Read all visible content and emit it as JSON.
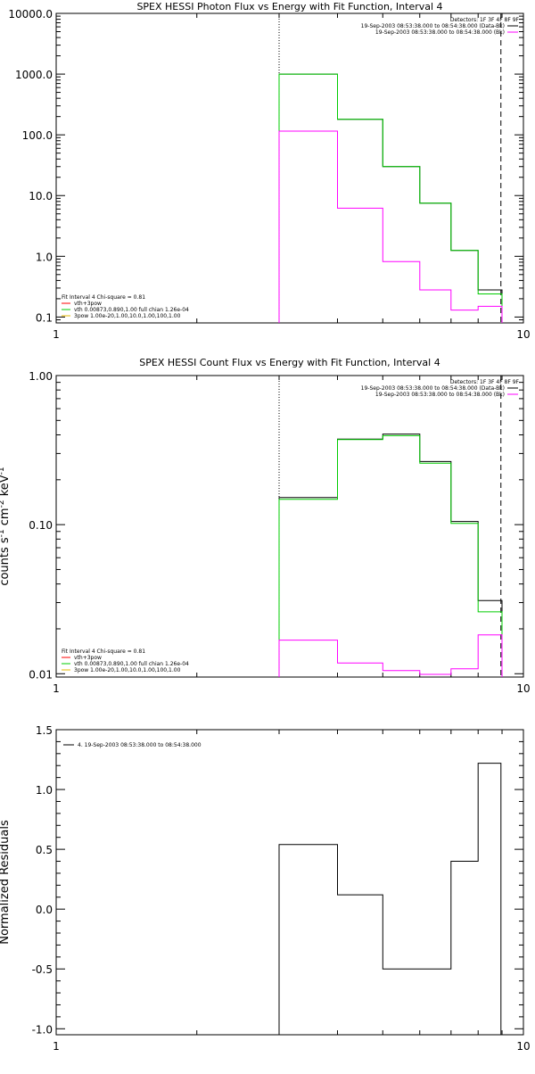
{
  "chart_data": [
    {
      "type": "line",
      "title": "SPEX HESSI Photon Flux vs Energy with Fit Function, Interval 4",
      "xscale": "log",
      "yscale": "log",
      "xlim": [
        1,
        10
      ],
      "ylim": [
        0.08,
        10000
      ],
      "xticks": [
        1,
        10
      ],
      "xtick_labels": [
        "1",
        "10"
      ],
      "yticks": [
        0.1,
        1,
        10,
        100,
        1000,
        10000
      ],
      "ytick_labels": [
        "0.1",
        "1.0",
        "10.0",
        "100.0",
        "1000.0",
        "10000.0"
      ],
      "xlabel": "",
      "ylabel": "",
      "vlines": [
        {
          "x": 3.0,
          "style": "dotted"
        },
        {
          "x": 8.95,
          "style": "dashed"
        }
      ],
      "legend_top_right": [
        {
          "label": "Detectors: 1F 3F 4F 8F 9F",
          "color": ""
        },
        {
          "label": "19-Sep-2003 08:53:38.000 to 08:54:38.000 (Data-Bk)",
          "color": "#000000"
        },
        {
          "label": "19-Sep-2003 08:53:38.000 to 08:54:38.000 (Bk)",
          "color": "#ff00ff"
        }
      ],
      "legend_bottom_left": [
        {
          "label": "Fit Interval 4   Chi-square = 0.81",
          "color": "#000000"
        },
        {
          "label": "vth+3pow",
          "color": "#ff0000"
        },
        {
          "label": "vth 0.00873,0.890,1.00  full chian 1.26e-04",
          "color": "#00cc00"
        },
        {
          "label": "3pow 1.00e-20,1.00,10.0,1.00,100,1.00",
          "color": "#e6b800"
        }
      ],
      "series": [
        {
          "name": "19-Sep-2003 08:53:38.000 to 08:54:38.000 (Data-Bk)",
          "color": "#000000",
          "edges": [
            3,
            4,
            5,
            6,
            7,
            8,
            9
          ],
          "values": [
            1000,
            180,
            30,
            7.5,
            1.25,
            0.28
          ]
        },
        {
          "name": "vth",
          "color": "#00cc00",
          "edges": [
            3,
            4,
            5,
            6,
            7,
            8,
            9
          ],
          "values": [
            1000,
            180,
            30,
            7.5,
            1.25,
            0.24
          ]
        },
        {
          "name": "19-Sep-2003 08:53:38.000 to 08:54:38.000 (Bk)",
          "color": "#ff00ff",
          "edges": [
            3,
            4,
            5,
            6,
            7,
            8,
            9
          ],
          "values": [
            115,
            6.2,
            0.82,
            0.28,
            0.13,
            0.15
          ]
        }
      ]
    },
    {
      "type": "line",
      "title": "SPEX HESSI Count Flux vs Energy with Fit Function, Interval 4",
      "xscale": "log",
      "yscale": "log",
      "xlim": [
        1,
        10
      ],
      "ylim": [
        0.0095,
        1.0
      ],
      "xticks": [
        1,
        10
      ],
      "xtick_labels": [
        "1",
        "10"
      ],
      "yticks": [
        0.01,
        0.1,
        1.0
      ],
      "ytick_labels": [
        "0.01",
        "0.10",
        "1.00"
      ],
      "xlabel": "",
      "ylabel": "counts s",
      "ylabel_sup1": "-1",
      "ylabel_mid": " cm",
      "ylabel_sup2": "-2",
      "ylabel_end": " keV",
      "ylabel_sup3": "-1",
      "vlines": [
        {
          "x": 3.0,
          "style": "dotted"
        },
        {
          "x": 8.95,
          "style": "dashed"
        }
      ],
      "legend_top_right": [
        {
          "label": "Detectors: 1F 3F 4F 8F 9F",
          "color": ""
        },
        {
          "label": "19-Sep-2003 08:53:38.000 to 08:54:38.000 (Data-Bk)",
          "color": "#000000"
        },
        {
          "label": "19-Sep-2003 08:53:38.000 to 08:54:38.000 (Bk)",
          "color": "#ff00ff"
        }
      ],
      "legend_bottom_left": [
        {
          "label": "Fit Interval 4   Chi-square = 0.81",
          "color": "#000000"
        },
        {
          "label": "vth+3pow",
          "color": "#ff0000"
        },
        {
          "label": "vth 0.00873,0.890,1.00  full chian 1.26e-04",
          "color": "#00cc00"
        },
        {
          "label": "3pow 1.00e-20,1.00,10.0,1.00,100,1.00",
          "color": "#e6b800"
        }
      ],
      "series": [
        {
          "name": "19-Sep-2003 08:53:38.000 to 08:54:38.000 (Data-Bk)",
          "color": "#000000",
          "edges": [
            3,
            4,
            5,
            6,
            7,
            8,
            9
          ],
          "values": [
            0.152,
            0.375,
            0.405,
            0.265,
            0.105,
            0.031
          ]
        },
        {
          "name": "vth",
          "color": "#00cc00",
          "edges": [
            3,
            4,
            5,
            6,
            7,
            8,
            9
          ],
          "values": [
            0.148,
            0.372,
            0.395,
            0.258,
            0.102,
            0.026
          ]
        },
        {
          "name": "19-Sep-2003 08:53:38.000 to 08:54:38.000 (Bk)",
          "color": "#ff00ff",
          "edges": [
            3,
            4,
            5,
            6,
            7,
            8,
            9
          ],
          "values": [
            0.0168,
            0.0118,
            0.0105,
            0.0099,
            0.0108,
            0.0182
          ]
        }
      ]
    },
    {
      "type": "line",
      "title": "",
      "xscale": "log",
      "yscale": "linear",
      "xlim": [
        1,
        10
      ],
      "ylim": [
        -1.05,
        1.5
      ],
      "xticks": [
        1,
        10
      ],
      "xtick_labels": [
        "1",
        "10"
      ],
      "yticks": [
        -1.0,
        -0.5,
        0.0,
        0.5,
        1.0,
        1.5
      ],
      "ytick_labels": [
        "-1.0",
        "-0.5",
        "0.0",
        "0.5",
        "1.0",
        "1.5"
      ],
      "xlabel": "",
      "ylabel": "Normalized Residuals",
      "legend_top_left": [
        {
          "label": "4. 19-Sep-2003 08:53:38.000 to 08:54:38.000",
          "color": "#000000"
        }
      ],
      "series": [
        {
          "name": "4. 19-Sep-2003 08:53:38.000 to 08:54:38.000",
          "color": "#000000",
          "edges": [
            3,
            4,
            5,
            7,
            8,
            8.95
          ],
          "values": [
            0.54,
            0.12,
            -0.5,
            0.4,
            1.22
          ],
          "drop_to": -1.05
        }
      ]
    }
  ]
}
